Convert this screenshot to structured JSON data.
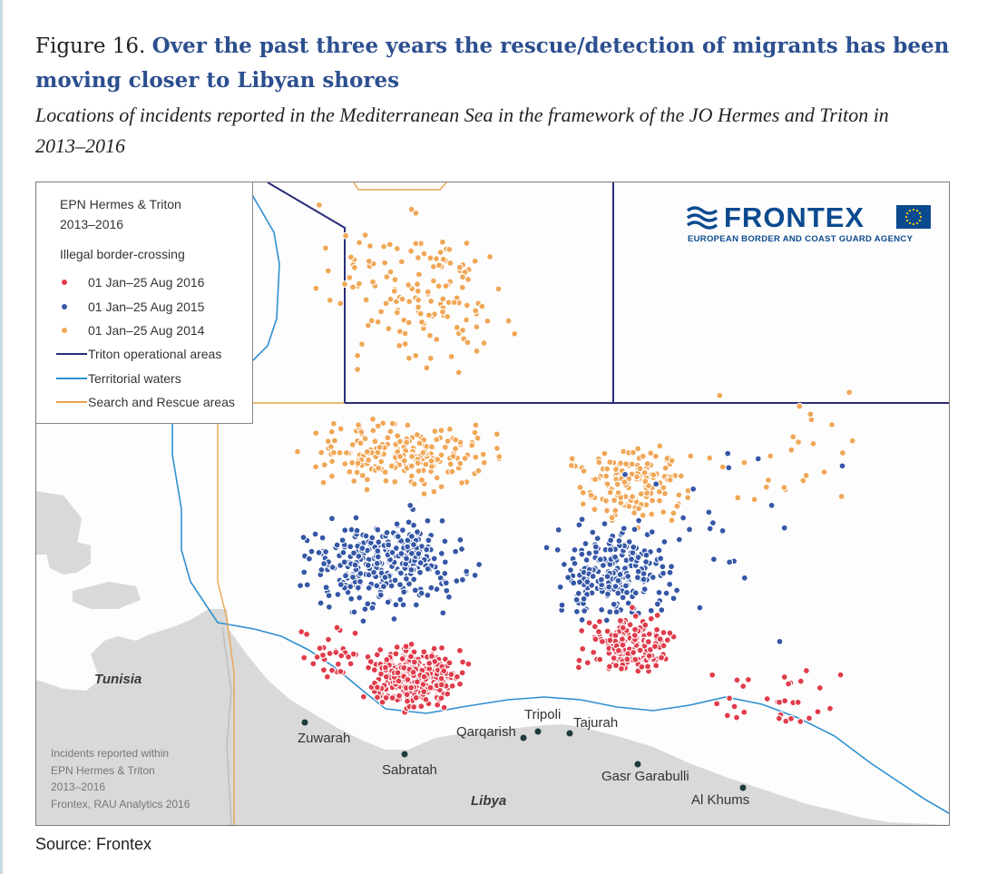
{
  "figure": {
    "number_label": "Figure 16.",
    "title": "Over the past three years the rescue/detection of migrants has been moving closer to Libyan shores",
    "subtitle": "Locations of incidents reported in the Mediterranean Sea in the framework of the JO Hermes and Triton in 2013–2016"
  },
  "legend": {
    "title_line1": "EPN Hermes & Triton",
    "title_line2": "2013–2016",
    "section": "Illegal border-crossing",
    "items": [
      {
        "label": "01 Jan–25 Aug 2016",
        "kind": "dot",
        "color": "#e03c4b"
      },
      {
        "label": "01 Jan–25 Aug 2015",
        "kind": "dot",
        "color": "#3557a6"
      },
      {
        "label": "01 Jan–25 Aug 2014",
        "kind": "dot",
        "color": "#f0a757"
      },
      {
        "label": "Triton operational areas",
        "kind": "line",
        "color": "#2a2e7a"
      },
      {
        "label": "Territorial waters",
        "kind": "line",
        "color": "#2f8fd0"
      },
      {
        "label": "Search and Rescue areas",
        "kind": "line",
        "color": "#e7a451"
      }
    ]
  },
  "brand": {
    "name": "FRONTEX",
    "tagline": "EUROPEAN BORDER AND COAST GUARD AGENCY",
    "color": "#0b4a8f"
  },
  "places": [
    {
      "name": "Zuwarah"
    },
    {
      "name": "Sabratah"
    },
    {
      "name": "Qarqarish"
    },
    {
      "name": "Tripoli"
    },
    {
      "name": "Tajurah"
    },
    {
      "name": "Gasr Garabulli"
    },
    {
      "name": "Al Khums"
    }
  ],
  "countries": {
    "tunisia": "Tunisia",
    "libya": "Libya"
  },
  "map_note": {
    "line1": "Incidents reported within",
    "line2": "EPN Hermes & Triton",
    "line3": "2013–2016",
    "line4": "Frontex, RAU Analytics 2016"
  },
  "source": "Source: Frontex",
  "colors": {
    "land": "#d9d9d9",
    "sea": "#fdfdfd",
    "dot_2016": "#e03c4b",
    "dot_2015": "#3557a6",
    "dot_2014": "#f0a757",
    "triton": "#2a2e7a",
    "territorial": "#2f8fd0",
    "sar": "#e7a451"
  }
}
